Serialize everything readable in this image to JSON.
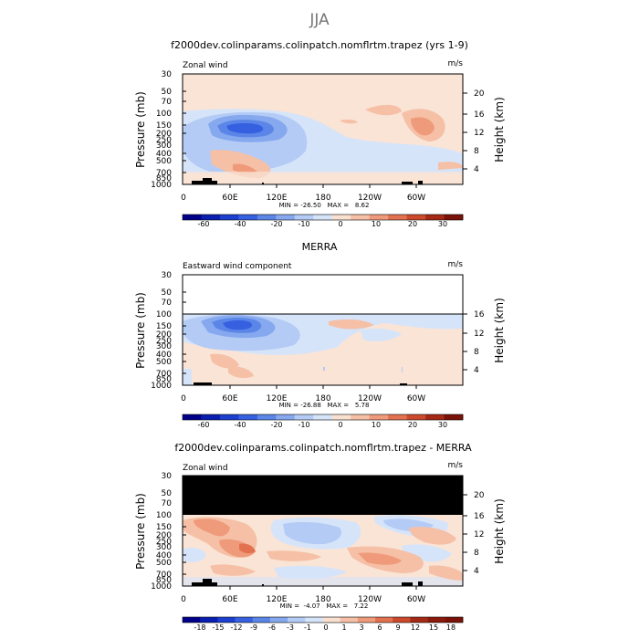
{
  "figure": {
    "title": "JJA"
  },
  "colorbar_ticks_abs": [
    "-60",
    "-40",
    "-20",
    "-10",
    "0",
    "10",
    "20",
    "30"
  ],
  "colorbar_ticks_diff": [
    "-18",
    "-15",
    "-12",
    "-9",
    "-6",
    "-3",
    "-1",
    "0",
    "1",
    "3",
    "6",
    "9",
    "12",
    "15",
    "18"
  ],
  "colors": {
    "abs_palette": [
      "#00008b",
      "#0a1fb0",
      "#1c3fd0",
      "#3560e0",
      "#5b86e8",
      "#86a8ee",
      "#b4cbf5",
      "#d6e4fa",
      "#fae0d0",
      "#f5c0a6",
      "#ef9a7a",
      "#e2714f",
      "#cc4a2b",
      "#a52a15",
      "#7a1208"
    ],
    "land": "#000000",
    "masked": "#000000"
  },
  "chart_data": [
    {
      "type": "heatmap",
      "title": "f2000dev.colinparams.colinpatch.nomflrtm.trapez (yrs 1-9)",
      "left_label": "Zonal wind",
      "units": "m/s",
      "ylabel": "Pressure (mb)",
      "ylabel_right": "Height (km)",
      "x_ticks": [
        "0",
        "60E",
        "120E",
        "180",
        "120W",
        "60W"
      ],
      "y_ticks": [
        "30",
        "50",
        "70",
        "100",
        "150",
        "200",
        "250",
        "300",
        "400",
        "500",
        "700",
        "850",
        "1000"
      ],
      "height_ticks": [
        "20",
        "16",
        "12",
        "8",
        "4"
      ],
      "stats": "MIN = -26.50   MAX =   8.62",
      "min": -26.5,
      "max": 8.62,
      "ylim": [
        1000,
        30
      ]
    },
    {
      "type": "heatmap",
      "title": "MERRA",
      "left_label": "Eastward wind component",
      "units": "m/s",
      "ylabel": "Pressure (mb)",
      "ylabel_right": "Height (km)",
      "x_ticks": [
        "0",
        "60E",
        "120E",
        "180",
        "120W",
        "60W"
      ],
      "y_ticks": [
        "30",
        "50",
        "70",
        "100",
        "150",
        "200",
        "250",
        "300",
        "400",
        "500",
        "700",
        "850",
        "1000"
      ],
      "height_ticks": [
        "16",
        "12",
        "8",
        "4"
      ],
      "stats": "MIN = -26.88   MAX =   5.78",
      "min": -26.88,
      "max": 5.78,
      "ylim": [
        1000,
        30
      ]
    },
    {
      "type": "heatmap",
      "title": "f2000dev.colinparams.colinpatch.nomflrtm.trapez - MERRA",
      "left_label": "Zonal wind",
      "units": "m/s",
      "ylabel": "Pressure (mb)",
      "ylabel_right": "Height (km)",
      "x_ticks": [
        "0",
        "60E",
        "120E",
        "180",
        "120W",
        "60W"
      ],
      "y_ticks": [
        "30",
        "50",
        "70",
        "100",
        "150",
        "200",
        "250",
        "300",
        "400",
        "500",
        "700",
        "850",
        "1000"
      ],
      "height_ticks": [
        "20",
        "16",
        "12",
        "8",
        "4"
      ],
      "stats": "MIN =  -4.07   MAX =   7.22",
      "min": -4.07,
      "max": 7.22,
      "ylim": [
        1000,
        30
      ]
    }
  ]
}
